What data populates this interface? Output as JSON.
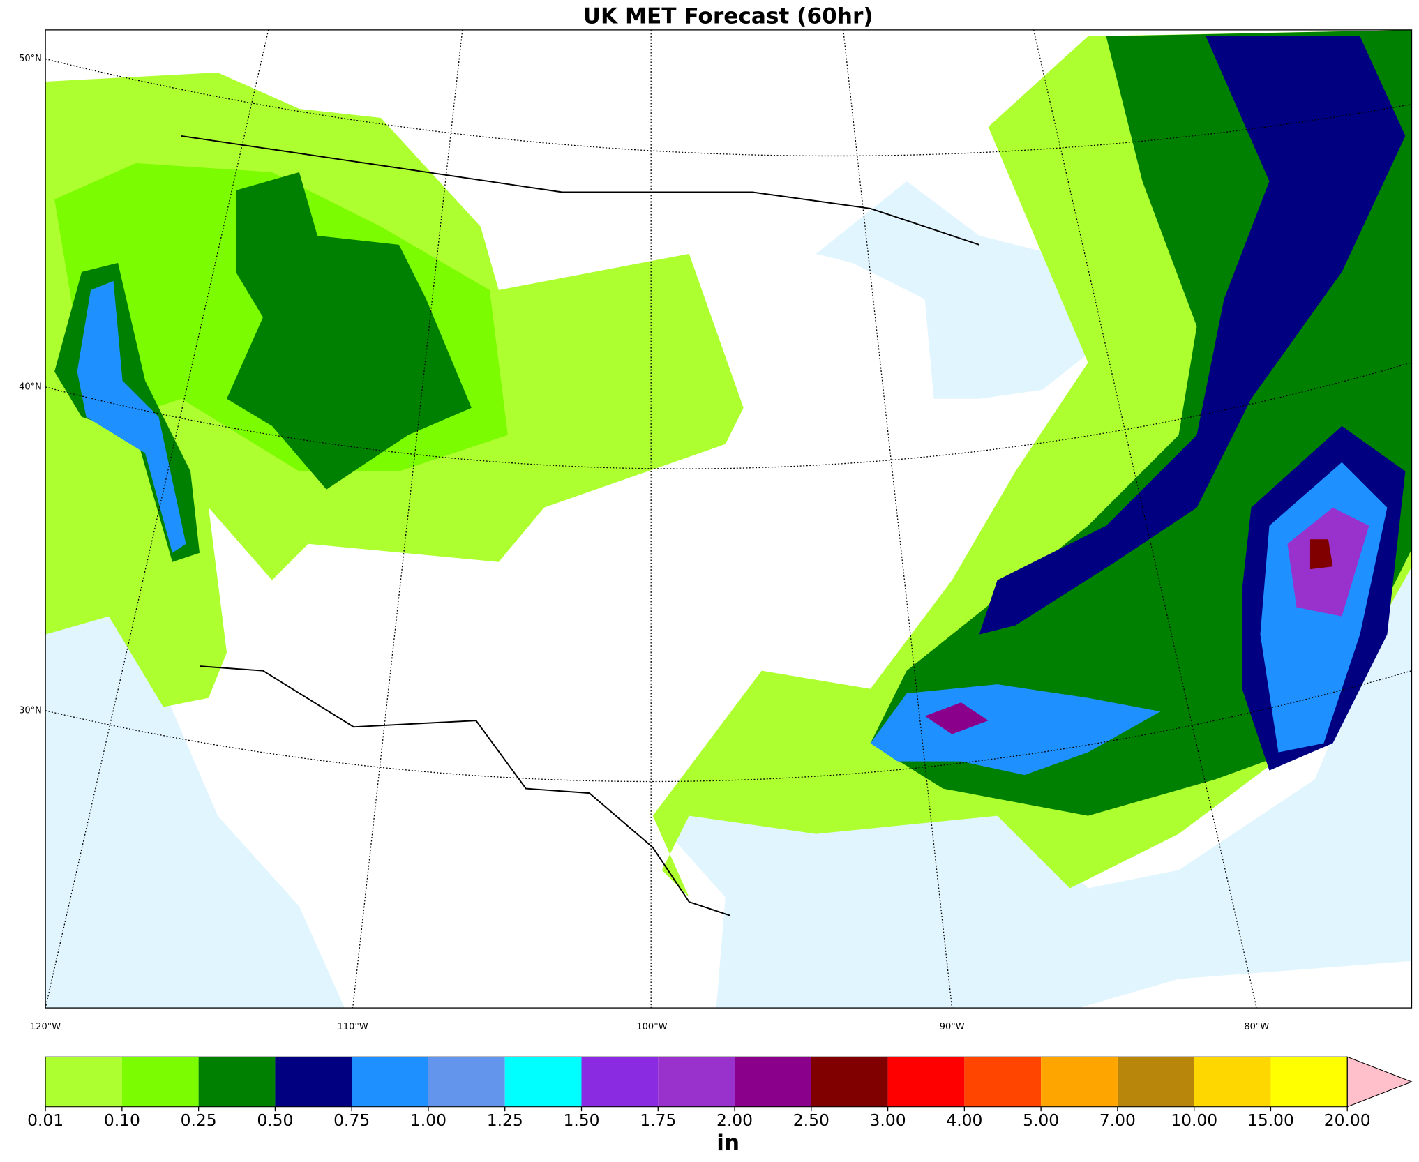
{
  "title": "UK MET Forecast (60hr)",
  "map": {
    "lat_labels": [
      "50°N",
      "40°N",
      "30°N"
    ],
    "lon_labels": [
      "120°W",
      "110°W",
      "100°W",
      "90°W",
      "80°W"
    ]
  },
  "colorbar": {
    "ticks": [
      "0.01",
      "0.10",
      "0.25",
      "0.50",
      "0.75",
      "1.00",
      "1.25",
      "1.50",
      "1.75",
      "2.00",
      "2.50",
      "3.00",
      "4.00",
      "5.00",
      "7.00",
      "10.00",
      "15.00",
      "20.00"
    ],
    "colors": [
      "#adff2f",
      "#7cfc00",
      "#008000",
      "#000080",
      "#1e90ff",
      "#6495ed",
      "#00ffff",
      "#8a2be2",
      "#9932cc",
      "#8b008b",
      "#800000",
      "#ff0000",
      "#ff4500",
      "#ffa500",
      "#b8860b",
      "#ffd700",
      "#ffff00"
    ],
    "extend_color": "#ffc0cb",
    "unit": "in"
  }
}
